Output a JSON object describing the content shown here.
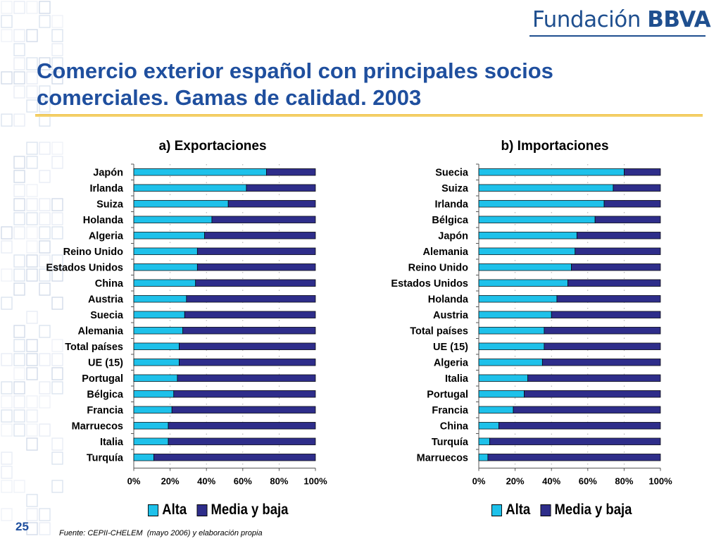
{
  "header": {
    "logo_text": "Fundación",
    "logo_brand": "BBVA",
    "title_line1": "Comercio exterior español con principales socios",
    "title_line2": "comerciales. Gamas de calidad. 2003"
  },
  "footer": {
    "page_number": "25",
    "source": "Fuente: CEPII-CHELEM  (mayo 2006) y elaboración propia"
  },
  "colors": {
    "alta": "#1ec1ea",
    "media": "#2e2d8a",
    "title": "#1f4f9e"
  },
  "chart_data": [
    {
      "type": "bar",
      "orientation": "horizontal",
      "stacked": "percent",
      "title": "a) Exportaciones",
      "xlim": [
        0,
        100
      ],
      "xticks": [
        "0%",
        "20%",
        "40%",
        "60%",
        "80%",
        "100%"
      ],
      "legend_placement": "bottom",
      "categories": [
        "Japón",
        "Irlanda",
        "Suiza",
        "Holanda",
        "Algeria",
        "Reino Unido",
        "Estados Unidos",
        "China",
        "Austria",
        "Suecia",
        "Alemania",
        "Total países",
        "UE (15)",
        "Portugal",
        "Bélgica",
        "Francia",
        "Marruecos",
        "Italia",
        "Turquía"
      ],
      "series": [
        {
          "name": "Alta",
          "values": [
            73,
            62,
            52,
            43,
            39,
            35,
            35,
            34,
            29,
            28,
            27,
            25,
            25,
            24,
            22,
            21,
            19,
            19,
            11
          ]
        },
        {
          "name": "Media y baja",
          "values": [
            27,
            38,
            48,
            57,
            61,
            65,
            65,
            66,
            71,
            72,
            73,
            75,
            75,
            76,
            78,
            79,
            81,
            81,
            89
          ]
        }
      ]
    },
    {
      "type": "bar",
      "orientation": "horizontal",
      "stacked": "percent",
      "title": "b) Importaciones",
      "xlim": [
        0,
        100
      ],
      "xticks": [
        "0%",
        "20%",
        "40%",
        "60%",
        "80%",
        "100%"
      ],
      "legend_placement": "bottom",
      "categories": [
        "Suecia",
        "Suiza",
        "Irlanda",
        "Bélgica",
        "Japón",
        "Alemania",
        "Reino Unido",
        "Estados Unidos",
        "Holanda",
        "Austria",
        "Total países",
        "UE (15)",
        "Algeria",
        "Italia",
        "Portugal",
        "Francia",
        "China",
        "Turquía",
        "Marruecos"
      ],
      "series": [
        {
          "name": "Alta",
          "values": [
            80,
            74,
            69,
            64,
            54,
            53,
            51,
            49,
            43,
            40,
            36,
            36,
            35,
            27,
            25,
            19,
            11,
            6,
            5
          ]
        },
        {
          "name": "Media y baja",
          "values": [
            20,
            26,
            31,
            36,
            46,
            47,
            49,
            51,
            57,
            60,
            64,
            64,
            65,
            73,
            75,
            81,
            89,
            94,
            95
          ]
        }
      ]
    }
  ]
}
